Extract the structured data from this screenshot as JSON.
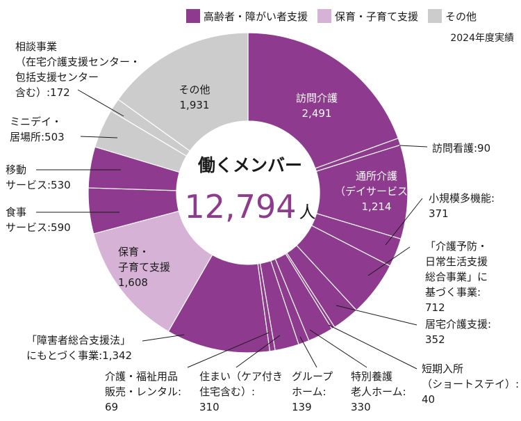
{
  "chart_data": {
    "type": "pie",
    "legend": [
      {
        "label": "高齢者・障がい者支援",
        "color": "#8e3a8e"
      },
      {
        "label": "保育・子育て支援",
        "color": "#d6b3d6"
      },
      {
        "label": "その他",
        "color": "#cccccc"
      }
    ],
    "subtitle": "2024年度実績",
    "center_title": "働くメンバー",
    "total": "12,794",
    "unit": "人",
    "slices": [
      {
        "group": 0,
        "value": 2491,
        "label": "訪問介護\n2,491"
      },
      {
        "group": 0,
        "value": 90,
        "label": "訪問看護:90"
      },
      {
        "group": 0,
        "value": 1214,
        "label": "通所介護\n（デイサービス）\n1,214"
      },
      {
        "group": 0,
        "value": 371,
        "label": "小規模多機能:\n371"
      },
      {
        "group": 0,
        "value": 712,
        "label": "「介護予防・\n日常生活支援\n総合事業」に\n基づく事業:\n712"
      },
      {
        "group": 0,
        "value": 352,
        "label": "居宅介護支援:\n352"
      },
      {
        "group": 0,
        "value": 40,
        "label": "短期入所\n（ショートステイ）:\n40"
      },
      {
        "group": 0,
        "value": 330,
        "label": "特別養護\n老人ホーム:\n330"
      },
      {
        "group": 0,
        "value": 139,
        "label": "グループ\nホーム:\n139"
      },
      {
        "group": 0,
        "value": 310,
        "label": "住まい（ケア付き\n住宅含む）:\n310"
      },
      {
        "group": 0,
        "value": 69,
        "label": "介護・福祉用品\n販売・レンタル:\n69"
      },
      {
        "group": 0,
        "value": 1342,
        "label": "「障害者総合支援法」\nにもとづく事業:1,342"
      },
      {
        "group": 1,
        "value": 1608,
        "label": "保育・\n子育て支援\n1,608"
      },
      {
        "group": 0,
        "value": 590,
        "label": "食事\nサービス:590"
      },
      {
        "group": 0,
        "value": 530,
        "label": "移動\nサービス:530"
      },
      {
        "group": 2,
        "value": 503,
        "label": "ミニデイ・\n居場所:503"
      },
      {
        "group": 2,
        "value": 172,
        "label": "相談事業\n（在宅介護支援センター・\n包括支援センター\n含む）:172"
      },
      {
        "group": 2,
        "value": 1931,
        "label": "その他\n1,931"
      }
    ]
  }
}
